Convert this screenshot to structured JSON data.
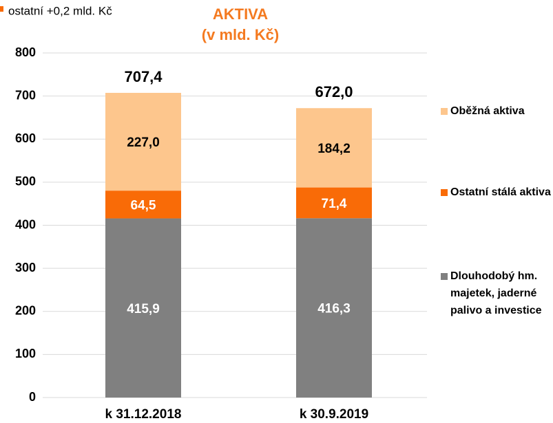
{
  "chart_data": {
    "type": "stacked_bar",
    "title": "AKTIVA",
    "subtitle": "(v mld. Kč)",
    "annotation": "ostatní +0,2 mld. Kč",
    "annotation_color": "#f96b07",
    "categories": [
      "k 31.12.2018",
      "k 30.9.2019"
    ],
    "series": [
      {
        "name": "Dlouhodobý hm. majetek, jaderné palivo a investice",
        "color": "#808080",
        "label_color": "#ffffff",
        "values": [
          415.9,
          416.3
        ],
        "value_labels": [
          "415,9",
          "416,3"
        ]
      },
      {
        "name": "Ostatní stálá aktiva",
        "color": "#f96b07",
        "label_color": "#ffffff",
        "values": [
          64.5,
          71.4
        ],
        "value_labels": [
          "64,5",
          "71,4"
        ]
      },
      {
        "name": "Oběžná aktiva",
        "color": "#fdc68d",
        "label_color": "#000000",
        "values": [
          227.0,
          184.2
        ],
        "value_labels": [
          "227,0",
          "184,2"
        ]
      }
    ],
    "totals": [
      707.4,
      672.0
    ],
    "total_labels": [
      "707,4",
      "672,0"
    ],
    "ylim": [
      0,
      800
    ],
    "yticks": [
      0,
      100,
      200,
      300,
      400,
      500,
      600,
      700,
      800
    ],
    "grid": true
  }
}
